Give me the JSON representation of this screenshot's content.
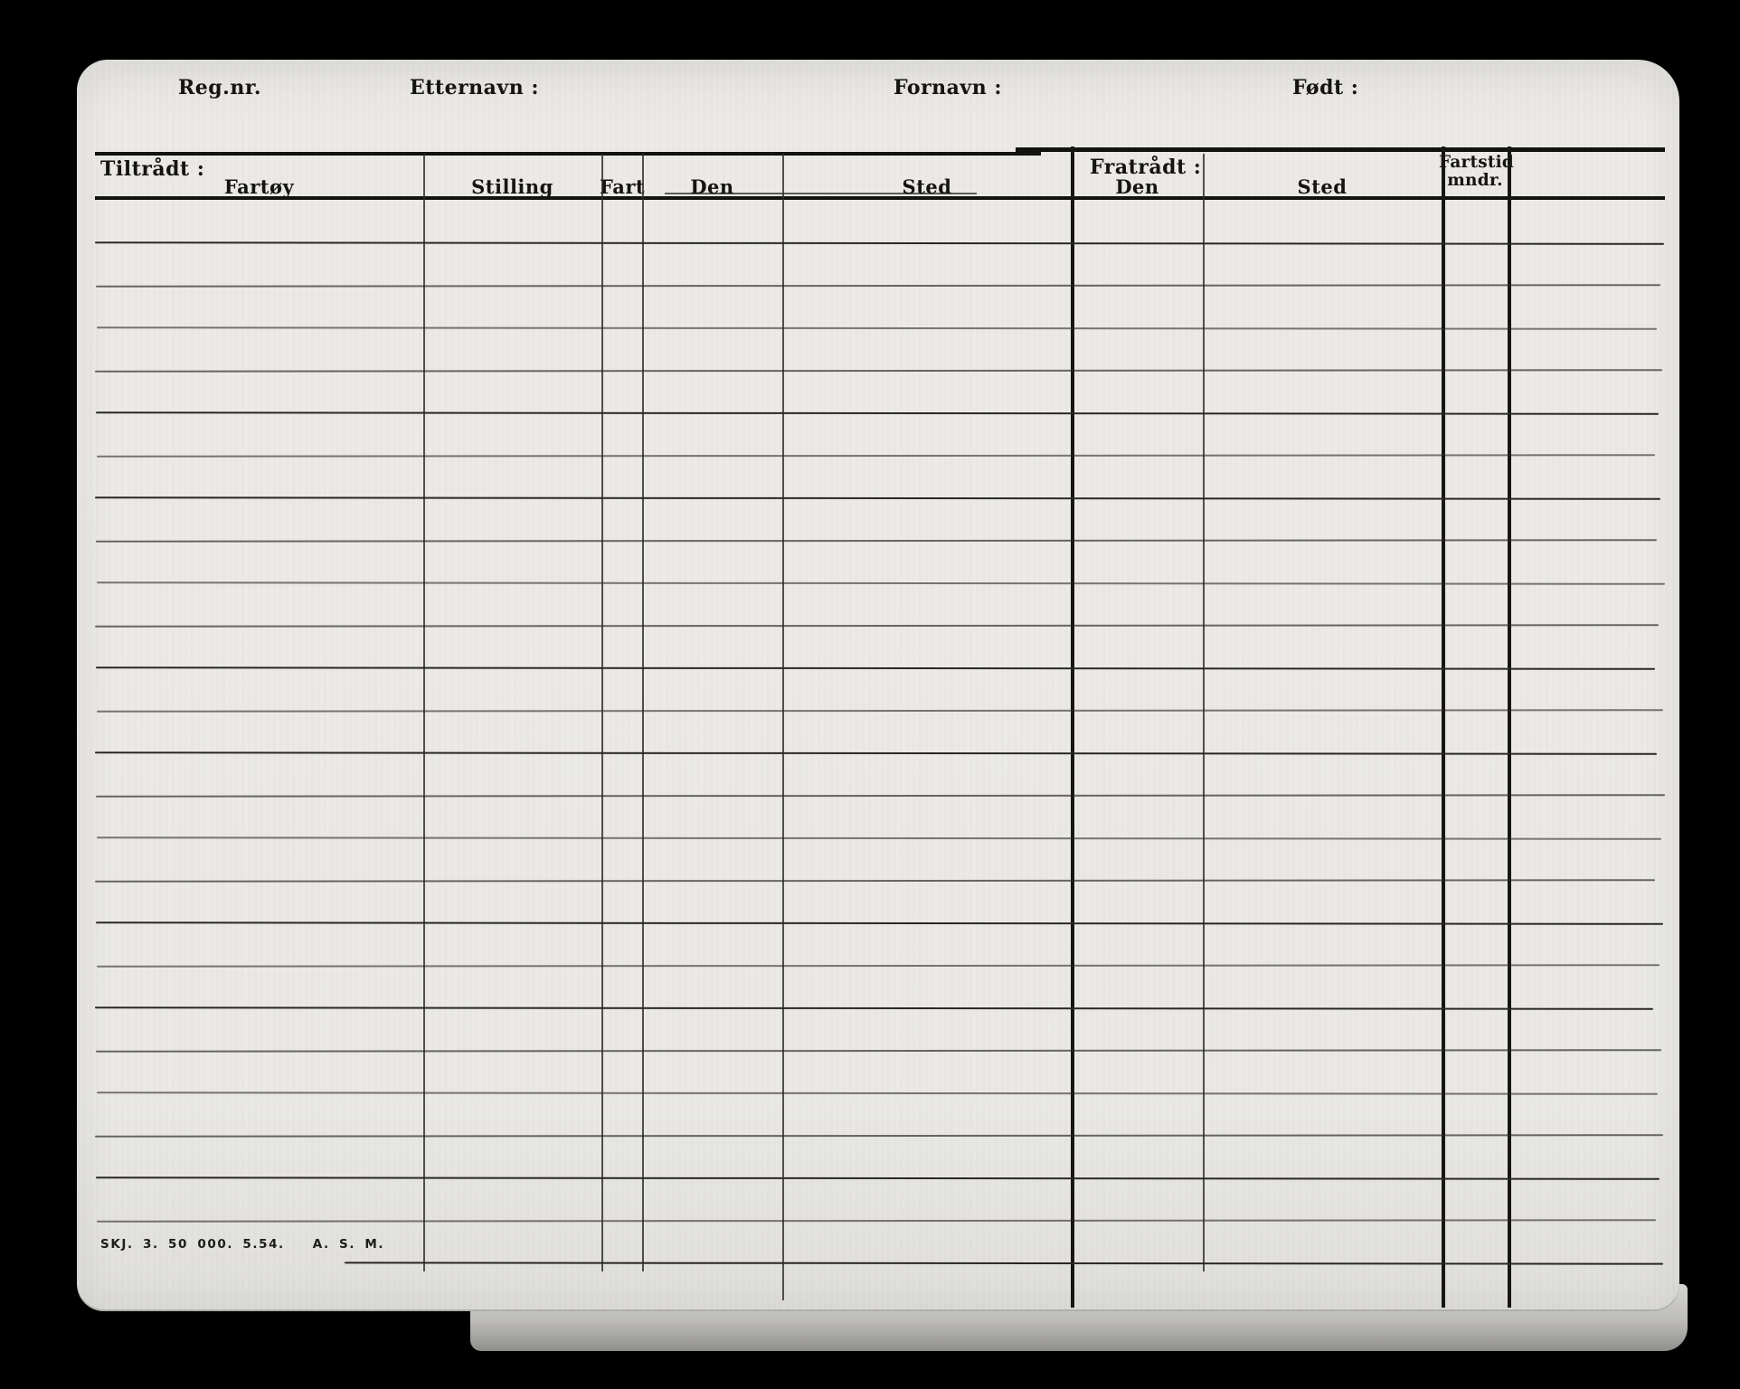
{
  "card": {
    "top_labels": {
      "reg_nr": "Reg.nr.",
      "etternavn": "Etternavn :",
      "fornavn": "Fornavn :",
      "fodt": "Født :"
    },
    "table_header": {
      "tiltradt": "Tiltrådt :",
      "fratradt": "Fratrådt :",
      "col_fartoy": "Fartøy",
      "col_stilling": "Stilling",
      "col_fart": "Fart",
      "col_den": "Den",
      "col_sted": "Sted",
      "col_fratradt_den": "Den",
      "col_fratradt_sted": "Sted",
      "col_fartstid_line1": "Fartstid",
      "col_fartstid_line2": "mndr."
    },
    "imprint": "SKJ. 3. 50 000. 5.54.   A. S. M."
  }
}
